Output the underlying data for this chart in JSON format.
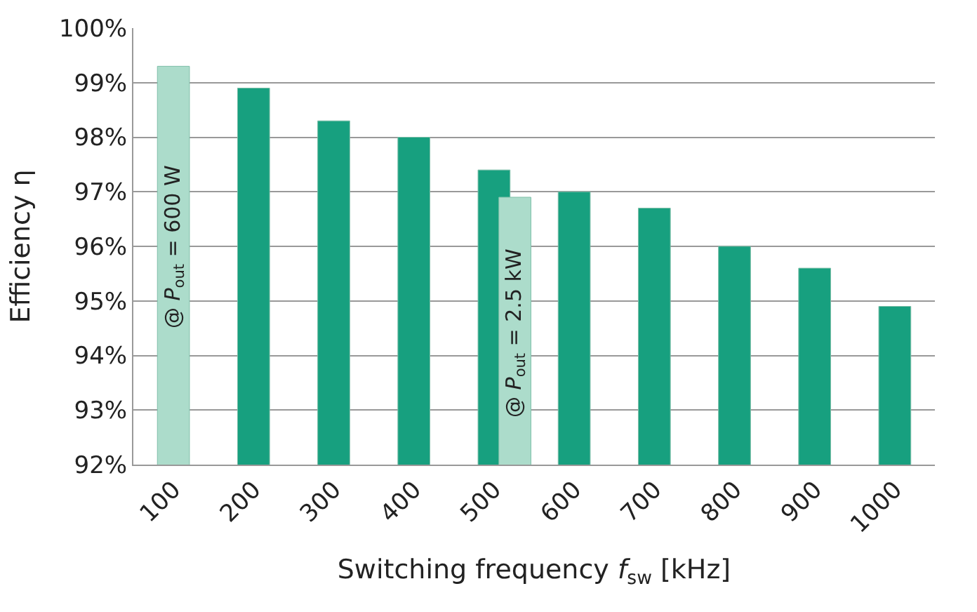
{
  "chart_data": {
    "type": "bar",
    "xlabel": "Switching frequency f$_{sw}$ [kHz]",
    "ylabel": "Efficiency η",
    "categories": [
      "100",
      "200",
      "300",
      "400",
      "500",
      "600",
      "700",
      "800",
      "900",
      "1000"
    ],
    "series": [
      {
        "color": "#17a07f",
        "values": [
          null,
          98.9,
          98.3,
          98.0,
          97.4,
          97.0,
          96.7,
          96.0,
          95.6,
          94.9
        ]
      },
      {
        "color": "#acdccb",
        "values": [
          99.3,
          null,
          null,
          null,
          96.9,
          null,
          null,
          null,
          null,
          null
        ]
      }
    ],
    "annotations": [
      {
        "text": "@ P$_{out}$ = 600 W",
        "x": "100",
        "y": 96.0
      },
      {
        "text": "@ P$_{out}$ = 2.5 kW",
        "x": "500",
        "y": 94.4
      }
    ],
    "ylim": [
      92,
      100
    ],
    "yticks": [
      {
        "value": 92,
        "label": "92%"
      },
      {
        "value": 93,
        "label": "93%"
      },
      {
        "value": 94,
        "label": "94%"
      },
      {
        "value": 95,
        "label": "95%"
      },
      {
        "value": 96,
        "label": "96%"
      },
      {
        "value": 97,
        "label": "97%"
      },
      {
        "value": 98,
        "label": "98%"
      },
      {
        "value": 99,
        "label": "99%"
      },
      {
        "value": 100,
        "label": "100%"
      }
    ],
    "grid": "y"
  }
}
